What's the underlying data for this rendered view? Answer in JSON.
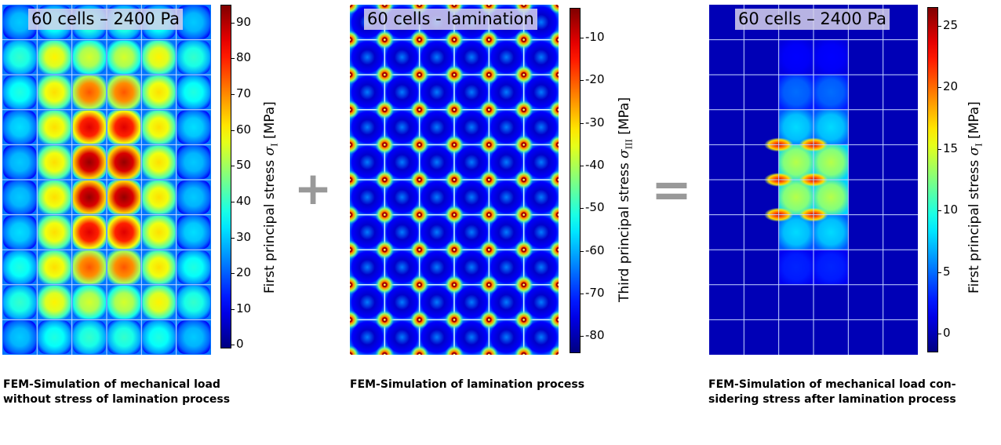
{
  "chart_data": [
    {
      "type": "heatmap",
      "title": "60 cells – 2400 Pa",
      "grid": {
        "rows": 10,
        "cols": 6
      },
      "colorbar": {
        "label_prefix": "First principal stress",
        "symbol": "σ",
        "subscript": "I",
        "unit": "[MPa]",
        "range": [
          -1,
          95
        ],
        "ticks": [
          0,
          10,
          20,
          30,
          40,
          50,
          60,
          70,
          80,
          90
        ]
      },
      "cell_peak_stress_MPa": [
        [
          30,
          38,
          40,
          40,
          38,
          30
        ],
        [
          40,
          60,
          55,
          55,
          60,
          40
        ],
        [
          38,
          62,
          75,
          75,
          62,
          38
        ],
        [
          32,
          62,
          86,
          86,
          62,
          32
        ],
        [
          30,
          62,
          93,
          93,
          62,
          30
        ],
        [
          30,
          62,
          93,
          93,
          62,
          30
        ],
        [
          32,
          62,
          86,
          86,
          62,
          32
        ],
        [
          38,
          62,
          75,
          75,
          62,
          38
        ],
        [
          40,
          60,
          55,
          55,
          60,
          40
        ],
        [
          30,
          38,
          40,
          40,
          38,
          30
        ]
      ],
      "caption": [
        "FEM-Simulation of mechanical load",
        "without stress of lamination process"
      ]
    },
    {
      "type": "heatmap",
      "title": "60 cells - lamination",
      "grid": {
        "rows": 10,
        "cols": 6
      },
      "colorbar": {
        "label_prefix": "Third principal stress",
        "symbol": "σ",
        "subscript": "III",
        "unit": "[MPa]",
        "range": [
          -84,
          -3
        ],
        "ticks": [
          -10,
          -20,
          -30,
          -40,
          -50,
          -60,
          -70,
          -80
        ]
      },
      "cell_center_stress_MPa": -78,
      "cell_corner_stress_MPa": -8,
      "caption": [
        "FEM-Simulation of lamination process"
      ]
    },
    {
      "type": "heatmap",
      "title": "60 cells – 2400 Pa",
      "grid": {
        "rows": 10,
        "cols": 6
      },
      "colorbar": {
        "label_prefix": "First principal stress",
        "symbol": "σ",
        "subscript": "I",
        "unit": "[MPa]",
        "range": [
          -1.5,
          26.5
        ],
        "ticks": [
          0,
          5,
          10,
          15,
          20,
          25
        ]
      },
      "cell_peak_stress_MPa": [
        [
          0,
          0,
          0,
          0,
          0,
          0
        ],
        [
          0,
          0,
          2,
          2,
          0,
          0
        ],
        [
          0,
          0,
          5,
          5,
          0,
          0
        ],
        [
          0,
          0,
          8,
          8,
          0,
          0
        ],
        [
          0,
          0,
          14,
          14,
          0,
          0
        ],
        [
          0,
          0,
          14,
          14,
          0,
          0
        ],
        [
          0,
          0,
          8,
          8,
          0,
          0
        ],
        [
          0,
          0,
          3,
          3,
          0,
          0
        ],
        [
          0,
          0,
          0,
          0,
          0,
          0
        ],
        [
          0,
          0,
          0,
          0,
          0,
          0
        ]
      ],
      "caption": [
        "FEM-Simulation of mechanical load con-",
        "sidering stress after lamination process"
      ]
    }
  ],
  "operators": {
    "plus": "+",
    "equals": "="
  },
  "colors": {
    "operator": "#999999",
    "grid_line": "#c8d8ff"
  }
}
